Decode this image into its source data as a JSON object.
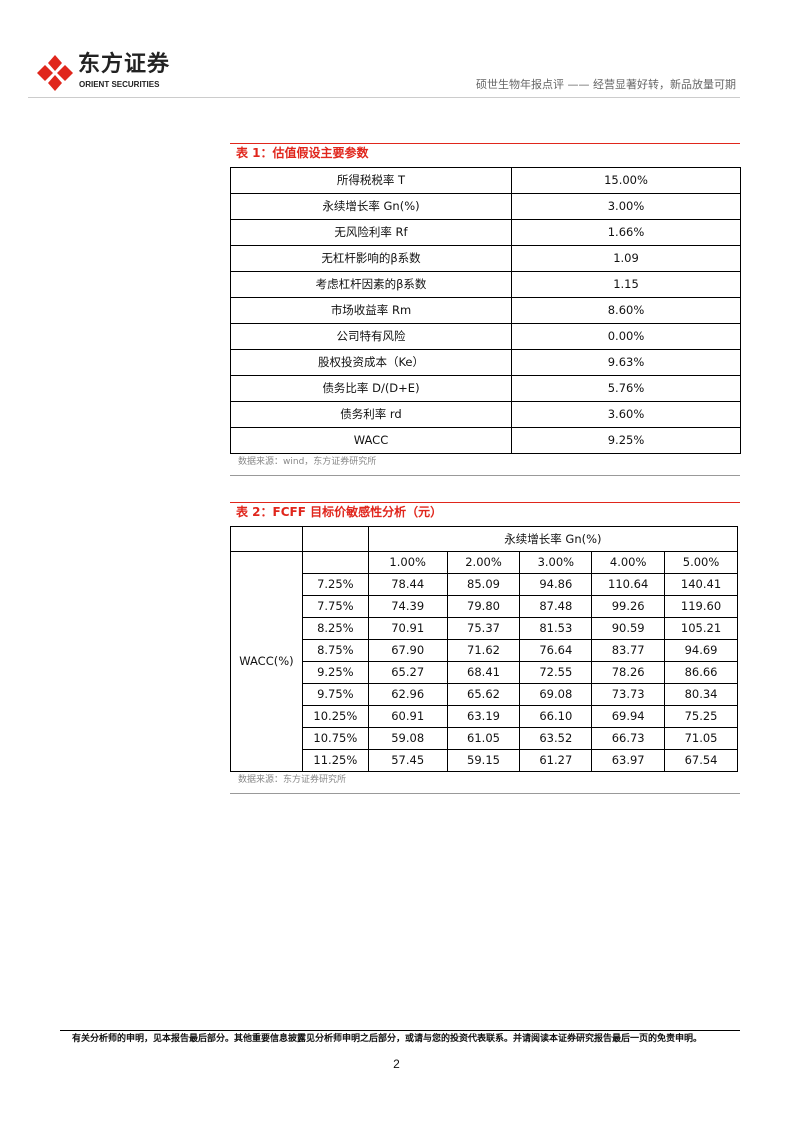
{
  "header": {
    "logo_cn": "东方证券",
    "logo_en": "ORIENT SECURITIES",
    "title": "硕世生物年报点评 —— 经营显著好转，新品放量可期",
    "brand_color": "#e0261c"
  },
  "table1": {
    "title": "表 1：估值假设主要参数",
    "rows": [
      [
        "所得税税率 T",
        "15.00%"
      ],
      [
        "永续增长率 Gn(%)",
        "3.00%"
      ],
      [
        "无风险利率 Rf",
        "1.66%"
      ],
      [
        "无杠杆影响的β系数",
        "1.09"
      ],
      [
        "考虑杠杆因素的β系数",
        "1.15"
      ],
      [
        "市场收益率 Rm",
        "8.60%"
      ],
      [
        "公司特有风险",
        "0.00%"
      ],
      [
        "股权投资成本（Ke）",
        "9.63%"
      ],
      [
        "债务比率 D/(D+E)",
        "5.76%"
      ],
      [
        "债务利率 rd",
        "3.60%"
      ],
      [
        "WACC",
        "9.25%"
      ]
    ],
    "source": "数据来源：wind，东方证券研究所"
  },
  "table2": {
    "title": "表 2：FCFF 目标价敏感性分析（元）",
    "col_header": "永续增长率 Gn(%)",
    "row_header": "WACC(%)",
    "growth": [
      "1.00%",
      "2.00%",
      "3.00%",
      "4.00%",
      "5.00%"
    ],
    "rows": [
      {
        "wacc": "7.25%",
        "values": [
          "78.44",
          "85.09",
          "94.86",
          "110.64",
          "140.41"
        ]
      },
      {
        "wacc": "7.75%",
        "values": [
          "74.39",
          "79.80",
          "87.48",
          "99.26",
          "119.60"
        ]
      },
      {
        "wacc": "8.25%",
        "values": [
          "70.91",
          "75.37",
          "81.53",
          "90.59",
          "105.21"
        ]
      },
      {
        "wacc": "8.75%",
        "values": [
          "67.90",
          "71.62",
          "76.64",
          "83.77",
          "94.69"
        ]
      },
      {
        "wacc": "9.25%",
        "values": [
          "65.27",
          "68.41",
          "72.55",
          "78.26",
          "86.66"
        ]
      },
      {
        "wacc": "9.75%",
        "values": [
          "62.96",
          "65.62",
          "69.08",
          "73.73",
          "80.34"
        ]
      },
      {
        "wacc": "10.25%",
        "values": [
          "60.91",
          "63.19",
          "66.10",
          "69.94",
          "75.25"
        ]
      },
      {
        "wacc": "10.75%",
        "values": [
          "59.08",
          "61.05",
          "63.52",
          "66.73",
          "71.05"
        ]
      },
      {
        "wacc": "11.25%",
        "values": [
          "57.45",
          "59.15",
          "61.27",
          "63.97",
          "67.54"
        ]
      }
    ],
    "source": "数据来源：东方证券研究所"
  },
  "footer": {
    "disclaimer": "有关分析师的申明，见本报告最后部分。其他重要信息披露见分析师申明之后部分，或请与您的投资代表联系。并请阅读本证券研究报告最后一页的免责申明。",
    "page": "2"
  }
}
